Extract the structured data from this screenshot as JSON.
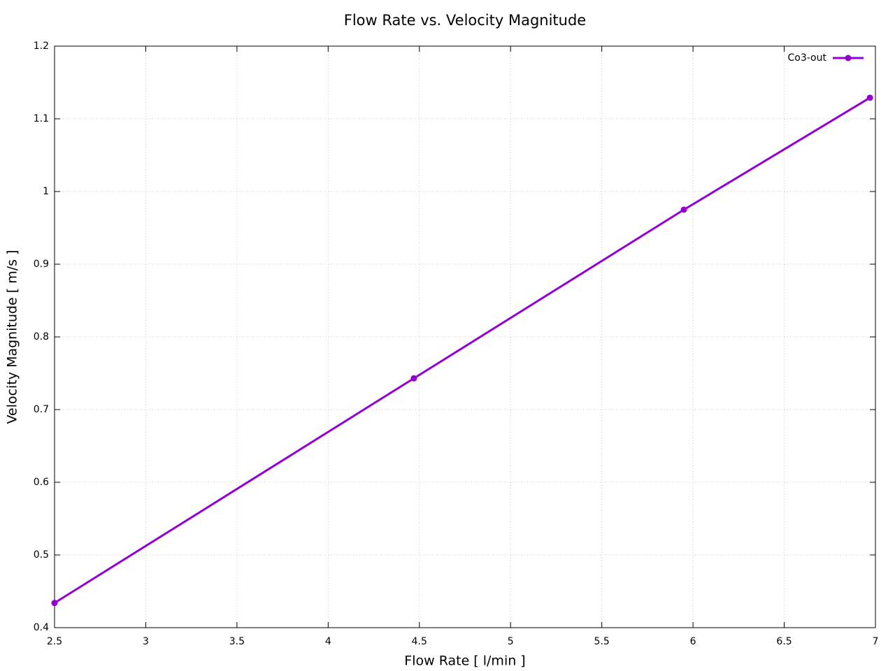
{
  "chart_data": {
    "type": "line",
    "title": "Flow Rate vs. Velocity Magnitude",
    "x_label": "Flow Rate [ l/min ]",
    "y_label": "Velocity Magnitude [ m/s ]",
    "x": [
      2.5,
      4.47,
      5.95,
      6.97
    ],
    "series": [
      {
        "name": "Co3-out",
        "color": "#9400d3",
        "values": [
          0.434,
          0.743,
          0.975,
          1.129
        ]
      }
    ],
    "xlim": [
      2.5,
      7
    ],
    "xticks": [
      2.5,
      3,
      3.5,
      4,
      4.5,
      5,
      5.5,
      6,
      6.5,
      7
    ],
    "ylim": [
      0.4,
      1.2
    ],
    "yticks": [
      0.4,
      0.5,
      0.6,
      0.7,
      0.8,
      0.9,
      1,
      1.1,
      1.2
    ],
    "grid": true,
    "legend": "top-right"
  }
}
